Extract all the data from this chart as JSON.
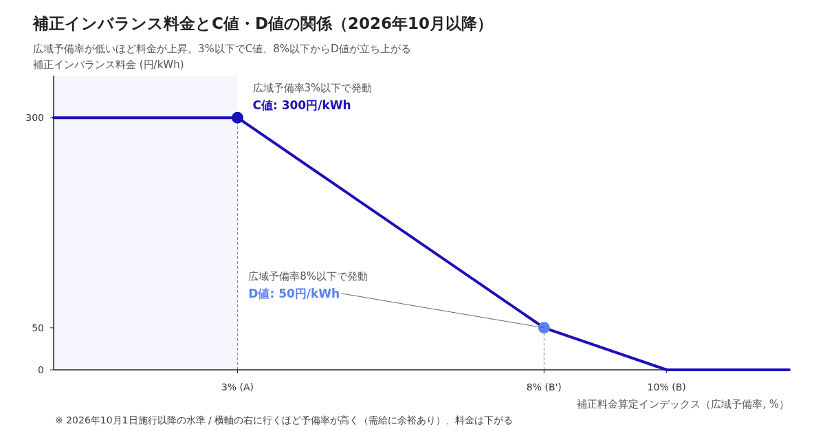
{
  "chart_data": {
    "type": "line",
    "title": "補正インバランス料金とC値・D値の関係（2026年10月以降）",
    "subtitle": "広域予備率が低いほど料金が上昇。3%以下でC値、8%以下からD値が立ち上がる",
    "ylabel": "補正インバランス料金 (円/kWh)",
    "xlabel": "補正料金算定インデックス（広域予備率, %）",
    "x": [
      0,
      3,
      8,
      10,
      12
    ],
    "series": [
      {
        "type": "line",
        "color": "#1a0fb8",
        "values": [
          300,
          300,
          50,
          0,
          0
        ]
      },
      {
        "type": "scatter",
        "x": [
          3,
          8
        ],
        "values": [
          300,
          50
        ],
        "colors": [
          "#1a0fb8",
          "#5b80f0"
        ]
      }
    ],
    "xlim": [
      0,
      12
    ],
    "xticks": [
      {
        "value": 3,
        "label": "3% (A)"
      },
      {
        "value": 8,
        "label": "8% (B')"
      },
      {
        "value": 10,
        "label": "10% (B)"
      }
    ],
    "ylim": [
      0,
      350
    ],
    "yticks": [
      0,
      50,
      300
    ],
    "bands": [
      {
        "axis": "x",
        "from": 0,
        "to": 3,
        "color": "#f5f5fd"
      }
    ],
    "ref_lines": [
      {
        "axis": "x",
        "value": 3,
        "color": "#888888",
        "line_style": "dashed"
      },
      {
        "axis": "x",
        "value": 8,
        "color": "#888888",
        "line_style": "dashed"
      }
    ],
    "annotations": [
      {
        "text": "広域予備率3%以下で発動\nC値: 300円/kWh",
        "x": 3,
        "y": 300
      },
      {
        "text": "広域予備率8%以下で発動\nD値: 50円/kWh",
        "x": 8,
        "y": 50
      },
      "※ 2026年10月1日施行以降の水準 / 横軸の右に行くほど予備率が高く（需給に余裕あり）、料金は下がる"
    ],
    "grid": false
  }
}
